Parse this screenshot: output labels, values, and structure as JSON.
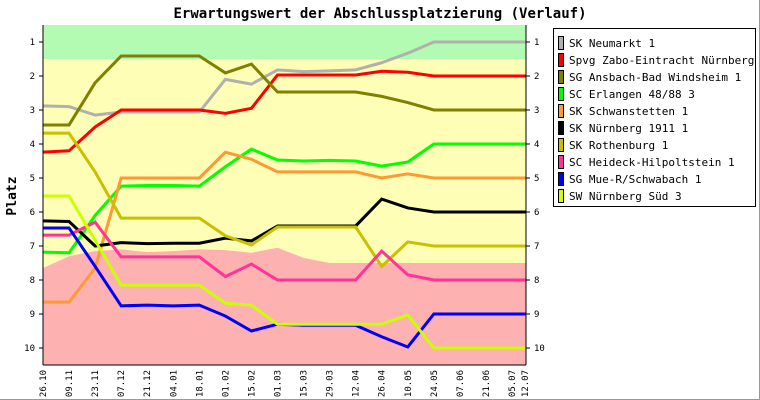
{
  "chart_data": {
    "type": "line",
    "title": "Erwartungswert der Abschlussplatzierung (Verlauf)",
    "ylabel": "Platz",
    "xlabel": "",
    "ylim": [
      1,
      10
    ],
    "y_inverted": true,
    "yticks": [
      "1",
      "2",
      "3",
      "4",
      "5",
      "6",
      "7",
      "8",
      "9",
      "10"
    ],
    "x_days": [
      0,
      14,
      28,
      42,
      56,
      70,
      84,
      98,
      112,
      126,
      140,
      154,
      168,
      182,
      196,
      210,
      224,
      238,
      252,
      259
    ],
    "categories": [
      "26.10",
      "09.11",
      "23.11",
      "07.12",
      "21.12",
      "04.01",
      "18.01",
      "01.02",
      "15.02",
      "01.03",
      "15.03",
      "29.03",
      "12.04",
      "26.04",
      "10.05",
      "24.05",
      "07.06",
      "21.06",
      "05.07",
      "12.07"
    ],
    "zones": {
      "promotion_below": 1.5,
      "relegation_boundary": [
        7.65,
        7.3,
        7.15,
        7.1,
        7.18,
        7.15,
        7.1,
        7.12,
        7.2,
        7.05,
        7.35,
        7.5,
        7.5,
        7.5,
        7.5,
        7.5,
        7.5,
        7.5,
        7.5,
        7.5
      ],
      "colors": {
        "promotion": "#b3fbb3",
        "middle": "#fefeb6",
        "relegation": "#fdb1b1"
      }
    },
    "legend_position": "right",
    "series": [
      {
        "name": "SK Neumarkt 1",
        "color": "#b0b0b0",
        "values": [
          2.88,
          2.9,
          3.15,
          3.06,
          3.06,
          3.06,
          3.06,
          2.1,
          2.24,
          1.82,
          1.87,
          1.85,
          1.82,
          1.61,
          1.33,
          1,
          1,
          1,
          1,
          1
        ]
      },
      {
        "name": "Spvg Zabo-Eintracht Nürnberg 1",
        "color": "#ff0000",
        "values": [
          4.24,
          4.2,
          3.5,
          3.0,
          3.0,
          3.0,
          3.0,
          3.1,
          2.95,
          1.97,
          1.97,
          1.97,
          1.97,
          1.86,
          1.89,
          2,
          2,
          2,
          2,
          2
        ]
      },
      {
        "name": "SG Ansbach-Bad Windsheim 1",
        "color": "#808000",
        "values": [
          3.44,
          3.44,
          2.2,
          1.41,
          1.41,
          1.41,
          1.41,
          1.91,
          1.65,
          2.47,
          2.47,
          2.47,
          2.47,
          2.6,
          2.78,
          3,
          3,
          3,
          3,
          3
        ]
      },
      {
        "name": "SC Erlangen 48/88 3",
        "color": "#00ff00",
        "values": [
          7.18,
          7.2,
          6.1,
          5.24,
          5.22,
          5.22,
          5.24,
          4.67,
          4.15,
          4.47,
          4.5,
          4.48,
          4.5,
          4.65,
          4.53,
          4,
          4,
          4,
          4,
          4
        ]
      },
      {
        "name": "SK Schwanstetten 1",
        "color": "#ff9933",
        "values": [
          8.65,
          8.65,
          7.65,
          5.0,
          5.0,
          5.0,
          5.0,
          4.24,
          4.45,
          4.82,
          4.82,
          4.82,
          4.82,
          5.0,
          4.88,
          5,
          5,
          5,
          5,
          5
        ]
      },
      {
        "name": "SK Nürnberg 1911 1",
        "color": "#000000",
        "values": [
          6.26,
          6.28,
          7.0,
          6.9,
          6.93,
          6.92,
          6.92,
          6.77,
          6.85,
          6.41,
          6.41,
          6.41,
          6.41,
          5.62,
          5.88,
          6,
          6,
          6,
          6,
          6
        ]
      },
      {
        "name": "SK Rothenburg 1",
        "color": "#c8c000",
        "values": [
          3.68,
          3.68,
          4.82,
          6.18,
          6.18,
          6.18,
          6.18,
          6.7,
          6.97,
          6.44,
          6.44,
          6.44,
          6.44,
          7.6,
          6.88,
          7,
          7,
          7,
          7,
          7
        ]
      },
      {
        "name": "SC Heideck-Hilpoltstein 1",
        "color": "#ff3399",
        "values": [
          6.68,
          6.68,
          6.3,
          7.32,
          7.32,
          7.32,
          7.32,
          7.9,
          7.53,
          8.0,
          8.0,
          8.0,
          8.0,
          7.15,
          7.85,
          8,
          8,
          8,
          8,
          8
        ]
      },
      {
        "name": "SG Mue-R/Schwabach 1",
        "color": "#0000ff",
        "values": [
          6.47,
          6.47,
          7.6,
          8.76,
          8.74,
          8.76,
          8.74,
          9.06,
          9.5,
          9.3,
          9.33,
          9.33,
          9.33,
          9.67,
          9.97,
          9,
          9,
          9,
          9,
          9
        ]
      },
      {
        "name": "SW Nürnberg Süd 3",
        "color": "#ccff00",
        "values": [
          5.53,
          5.53,
          6.83,
          8.15,
          8.15,
          8.15,
          8.15,
          8.68,
          8.74,
          9.3,
          9.3,
          9.3,
          9.3,
          9.3,
          9.03,
          10,
          10,
          10,
          10,
          10
        ]
      }
    ]
  }
}
